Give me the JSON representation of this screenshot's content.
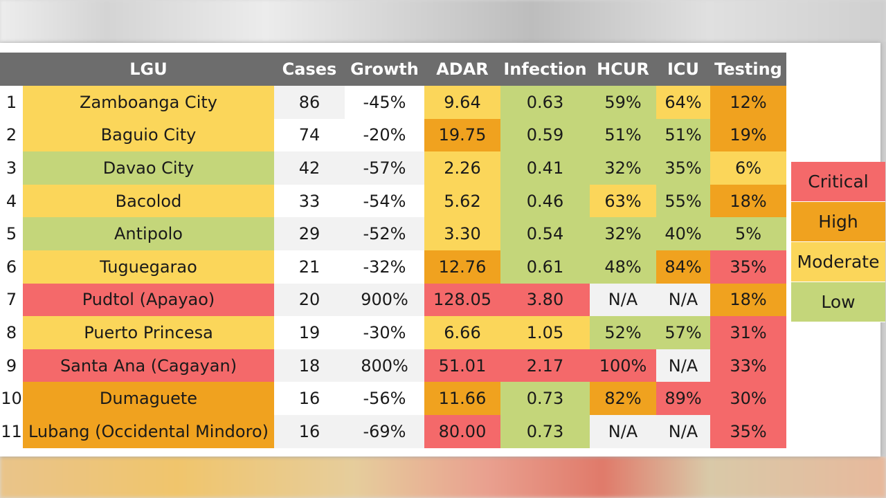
{
  "colors": {
    "low": "#c4d67a",
    "moderate": "#fbd65a",
    "high": "#f0a21f",
    "critical": "#f4696a",
    "gray": "#f2f2f2",
    "header": "#6d6d6d"
  },
  "table": {
    "headers": [
      "",
      "LGU",
      "Cases",
      "Growth",
      "ADAR",
      "Infection",
      "HCUR",
      "ICU",
      "Testing"
    ],
    "rows": [
      {
        "idx": "1",
        "lgu": "Zamboanga City",
        "cases": "86",
        "growth": "-45%",
        "adar": "9.64",
        "infection": "0.63",
        "hcur": "59%",
        "icu": "64%",
        "testing": "12%",
        "lvl": {
          "lgu": "mod",
          "cases": "gray",
          "growth": "white",
          "adar": "mod",
          "infection": "low",
          "hcur": "low",
          "icu": "mod",
          "testing": "high"
        }
      },
      {
        "idx": "2",
        "lgu": "Baguio City",
        "cases": "74",
        "growth": "-20%",
        "adar": "19.75",
        "infection": "0.59",
        "hcur": "51%",
        "icu": "51%",
        "testing": "19%",
        "lvl": {
          "lgu": "mod",
          "cases": "white",
          "growth": "white",
          "adar": "high",
          "infection": "low",
          "hcur": "low",
          "icu": "low",
          "testing": "high"
        }
      },
      {
        "idx": "3",
        "lgu": "Davao City",
        "cases": "42",
        "growth": "-57%",
        "adar": "2.26",
        "infection": "0.41",
        "hcur": "32%",
        "icu": "35%",
        "testing": "6%",
        "lvl": {
          "lgu": "low",
          "cases": "gray",
          "growth": "gray",
          "adar": "mod",
          "infection": "low",
          "hcur": "low",
          "icu": "low",
          "testing": "mod"
        }
      },
      {
        "idx": "4",
        "lgu": "Bacolod",
        "cases": "33",
        "growth": "-54%",
        "adar": "5.62",
        "infection": "0.46",
        "hcur": "63%",
        "icu": "55%",
        "testing": "18%",
        "lvl": {
          "lgu": "mod",
          "cases": "white",
          "growth": "white",
          "adar": "mod",
          "infection": "low",
          "hcur": "mod",
          "icu": "low",
          "testing": "high"
        }
      },
      {
        "idx": "5",
        "lgu": "Antipolo",
        "cases": "29",
        "growth": "-52%",
        "adar": "3.30",
        "infection": "0.54",
        "hcur": "32%",
        "icu": "40%",
        "testing": "5%",
        "lvl": {
          "lgu": "low",
          "cases": "gray",
          "growth": "gray",
          "adar": "mod",
          "infection": "low",
          "hcur": "low",
          "icu": "low",
          "testing": "low"
        }
      },
      {
        "idx": "6",
        "lgu": "Tuguegarao",
        "cases": "21",
        "growth": "-32%",
        "adar": "12.76",
        "infection": "0.61",
        "hcur": "48%",
        "icu": "84%",
        "testing": "35%",
        "lvl": {
          "lgu": "mod",
          "cases": "white",
          "growth": "white",
          "adar": "high",
          "infection": "low",
          "hcur": "low",
          "icu": "high",
          "testing": "crit"
        }
      },
      {
        "idx": "7",
        "lgu": "Pudtol (Apayao)",
        "cases": "20",
        "growth": "900%",
        "adar": "128.05",
        "infection": "3.80",
        "hcur": "N/A",
        "icu": "N/A",
        "testing": "18%",
        "lvl": {
          "lgu": "crit",
          "cases": "gray",
          "growth": "gray",
          "adar": "crit",
          "infection": "crit",
          "hcur": "gray",
          "icu": "gray",
          "testing": "high"
        }
      },
      {
        "idx": "8",
        "lgu": "Puerto Princesa",
        "cases": "19",
        "growth": "-30%",
        "adar": "6.66",
        "infection": "1.05",
        "hcur": "52%",
        "icu": "57%",
        "testing": "31%",
        "lvl": {
          "lgu": "mod",
          "cases": "white",
          "growth": "white",
          "adar": "mod",
          "infection": "mod",
          "hcur": "low",
          "icu": "low",
          "testing": "crit"
        }
      },
      {
        "idx": "9",
        "lgu": "Santa Ana (Cagayan)",
        "cases": "18",
        "growth": "800%",
        "adar": "51.01",
        "infection": "2.17",
        "hcur": "100%",
        "icu": "N/A",
        "testing": "33%",
        "lvl": {
          "lgu": "crit",
          "cases": "gray",
          "growth": "gray",
          "adar": "crit",
          "infection": "crit",
          "hcur": "crit",
          "icu": "gray",
          "testing": "crit"
        }
      },
      {
        "idx": "10",
        "lgu": "Dumaguete",
        "cases": "16",
        "growth": "-56%",
        "adar": "11.66",
        "infection": "0.73",
        "hcur": "82%",
        "icu": "89%",
        "testing": "30%",
        "lvl": {
          "lgu": "high",
          "cases": "white",
          "growth": "white",
          "adar": "high",
          "infection": "low",
          "hcur": "high",
          "icu": "crit",
          "testing": "crit"
        }
      },
      {
        "idx": "11",
        "lgu": "Lubang (Occidental Mindoro)",
        "cases": "16",
        "growth": "-69%",
        "adar": "80.00",
        "infection": "0.73",
        "hcur": "N/A",
        "icu": "N/A",
        "testing": "35%",
        "lvl": {
          "lgu": "high",
          "cases": "gray",
          "growth": "gray",
          "adar": "crit",
          "infection": "low",
          "hcur": "gray",
          "icu": "gray",
          "testing": "crit"
        }
      }
    ]
  },
  "legend": [
    {
      "label": "Critical",
      "lvl": "crit"
    },
    {
      "label": "High",
      "lvl": "high"
    },
    {
      "label": "Moderate",
      "lvl": "mod"
    },
    {
      "label": "Low",
      "lvl": "low"
    }
  ]
}
